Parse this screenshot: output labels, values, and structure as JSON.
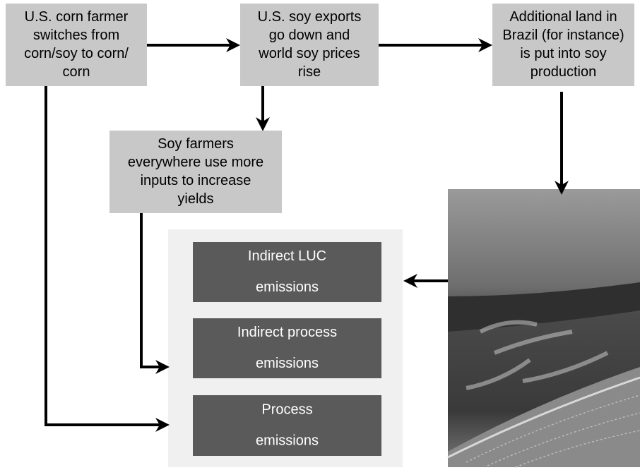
{
  "nodes": [
    {
      "label": [
        "U.S. corn farmer",
        "switches from",
        "corn/soy to corn/",
        "corn"
      ]
    },
    {
      "label": [
        "U.S. soy exports",
        "go down and",
        "world soy prices",
        "rise"
      ]
    },
    {
      "label": [
        "Additional land in",
        "Brazil (for instance)",
        "is put into soy",
        "production"
      ]
    },
    {
      "label": [
        "Soy farmers",
        "everywhere use more",
        "inputs to increase",
        "yields"
      ]
    },
    {
      "label": [
        "Indirect LUC",
        "emissions"
      ]
    },
    {
      "label": [
        "Indirect process",
        "emissions"
      ]
    },
    {
      "label": [
        "Process",
        "emissions"
      ]
    }
  ]
}
